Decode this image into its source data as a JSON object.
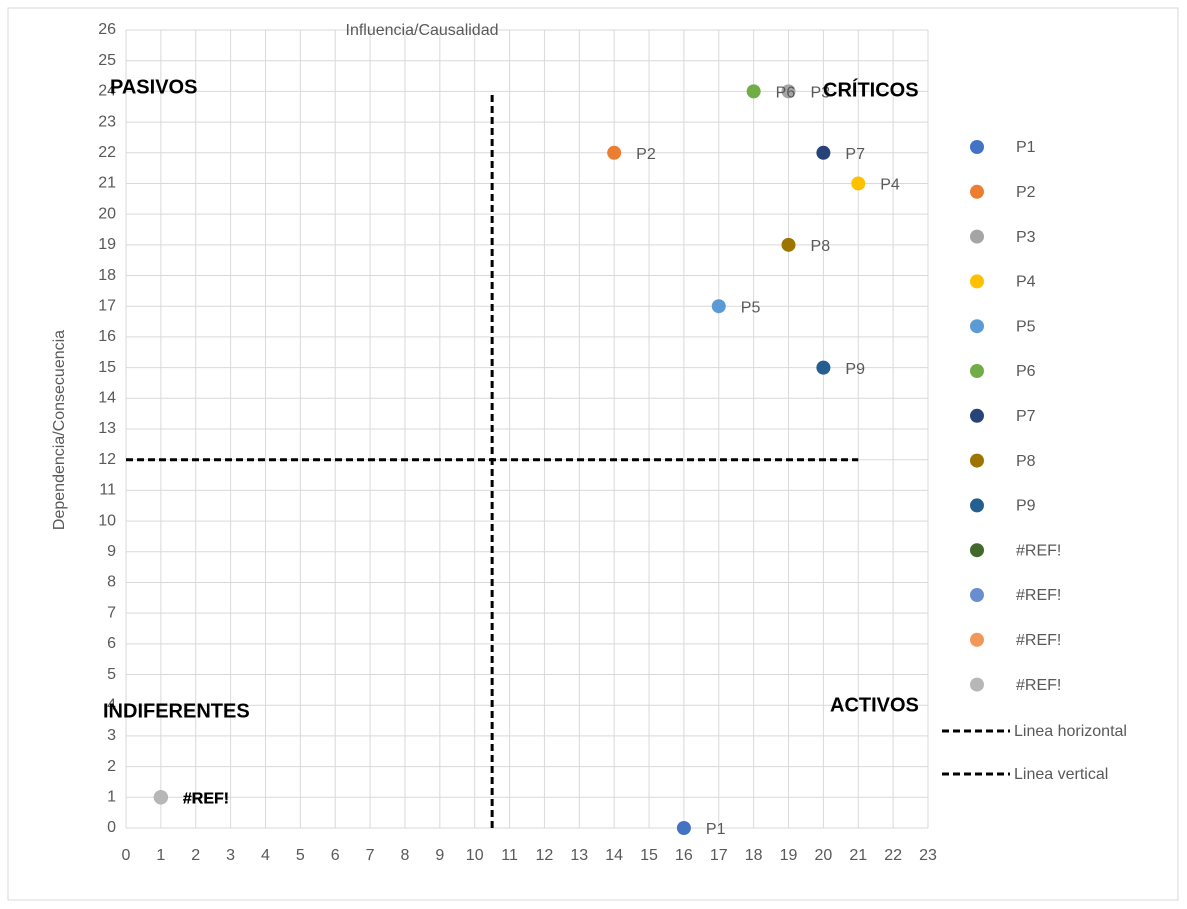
{
  "chart_data": {
    "type": "scatter",
    "title": "Influencia/Causalidad",
    "ylabel": "Dependencia/Consecuencia",
    "xlim": [
      0,
      23
    ],
    "ylim": [
      0,
      26
    ],
    "xticks": [
      0,
      1,
      2,
      3,
      4,
      5,
      6,
      7,
      8,
      9,
      10,
      11,
      12,
      13,
      14,
      15,
      16,
      17,
      18,
      19,
      20,
      21,
      22,
      23
    ],
    "yticks": [
      0,
      1,
      2,
      3,
      4,
      5,
      6,
      7,
      8,
      9,
      10,
      11,
      12,
      13,
      14,
      15,
      16,
      17,
      18,
      19,
      20,
      21,
      22,
      23,
      24,
      25,
      26
    ],
    "grid": true,
    "legend": "right",
    "annotations": [
      "PASIVOS",
      "CRÍTICOS",
      "INDIFERENTES",
      "ACTIVOS"
    ],
    "series": [
      {
        "name": "P1",
        "color": "#4472c4",
        "x": [
          16
        ],
        "y": [
          0
        ]
      },
      {
        "name": "P2",
        "color": "#ed7d31",
        "x": [
          14
        ],
        "y": [
          22
        ]
      },
      {
        "name": "P3",
        "color": "#a5a5a5",
        "x": [
          19
        ],
        "y": [
          24
        ]
      },
      {
        "name": "P4",
        "color": "#ffc000",
        "x": [
          21
        ],
        "y": [
          21
        ]
      },
      {
        "name": "P5",
        "color": "#5b9bd5",
        "x": [
          17
        ],
        "y": [
          17
        ]
      },
      {
        "name": "P6",
        "color": "#70ad47",
        "x": [
          18
        ],
        "y": [
          24
        ]
      },
      {
        "name": "P7",
        "color": "#264478",
        "x": [
          20
        ],
        "y": [
          22
        ]
      },
      {
        "name": "P8",
        "color": "#9e7400",
        "x": [
          19
        ],
        "y": [
          19
        ]
      },
      {
        "name": "P9",
        "color": "#255e91",
        "x": [
          20
        ],
        "y": [
          15
        ]
      },
      {
        "name": "#REF!",
        "color": "#43682b",
        "x": [
          1
        ],
        "y": [
          1
        ]
      },
      {
        "name": "#REF!",
        "color": "#698ed0",
        "x": [
          1
        ],
        "y": [
          1
        ]
      },
      {
        "name": "#REF!",
        "color": "#f1975a",
        "x": [
          1
        ],
        "y": [
          1
        ]
      },
      {
        "name": "#REF!",
        "color": "#b7b7b7",
        "x": [
          1
        ],
        "y": [
          1
        ]
      },
      {
        "name": "Linea horizontal",
        "color": "#000000",
        "line": "dashed",
        "x": [
          0,
          21
        ],
        "y": [
          12,
          12
        ]
      },
      {
        "name": "Linea vertical",
        "color": "#000000",
        "line": "dashed",
        "x": [
          10.5,
          10.5
        ],
        "y": [
          0,
          24
        ]
      }
    ]
  }
}
